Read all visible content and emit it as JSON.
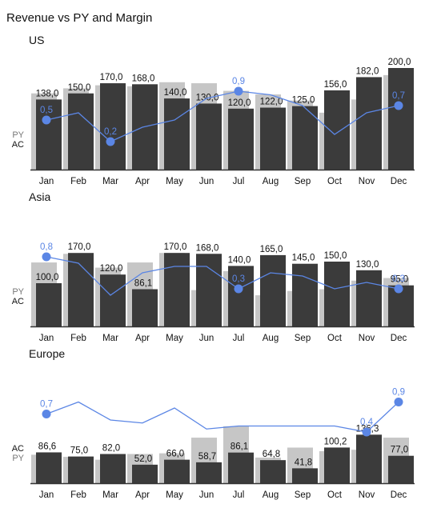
{
  "title": "Revenue vs PY and Margin",
  "colors": {
    "ac": "#3b3b3b",
    "py": "#c6c6c6",
    "margin": "#5b86e5",
    "axis": "#333333"
  },
  "chart_data": [
    {
      "type": "bar",
      "title": "US",
      "categories": [
        "Jan",
        "Feb",
        "Mar",
        "Apr",
        "May",
        "Jun",
        "Jul",
        "Aug",
        "Sep",
        "Oct",
        "Nov",
        "Dec"
      ],
      "side_labels": [
        "PY",
        "AC"
      ],
      "series": [
        {
          "name": "AC",
          "values": [
            138,
            150,
            170,
            168,
            140,
            130,
            120,
            122,
            125,
            156,
            182,
            200
          ]
        },
        {
          "name": "PY",
          "values": [
            150,
            160,
            166,
            164,
            172,
            170,
            155,
            148,
            136,
            112,
            138,
            186
          ]
        },
        {
          "name": "",
          "values": [
            0.5,
            0.6,
            0.2,
            0.4,
            0.5,
            0.8,
            0.9,
            0.85,
            0.7,
            0.3,
            0.6,
            0.7
          ]
        }
      ],
      "value_labels": [
        "138,0",
        "150,0",
        "170,0",
        "168,0",
        "140,0",
        "130,0",
        "120,0",
        "122,0",
        "125,0",
        "156,0",
        "182,0",
        "200,0"
      ],
      "margin_labels": [
        {
          "index": 0,
          "text": "0,5"
        },
        {
          "index": 2,
          "text": "0,2"
        },
        {
          "index": 6,
          "text": "0,9"
        },
        {
          "index": 11,
          "text": "0,7"
        }
      ]
    },
    {
      "type": "bar",
      "title": "Asia",
      "categories": [
        "Jan",
        "Feb",
        "Mar",
        "Apr",
        "May",
        "Jun",
        "Jul",
        "Aug",
        "Sep",
        "Oct",
        "Nov",
        "Dec"
      ],
      "side_labels": [
        "PY",
        "AC"
      ],
      "series": [
        {
          "name": "AC",
          "values": [
            100,
            170,
            120,
            86.1,
            170,
            168,
            140,
            165,
            145,
            150,
            130,
            95
          ]
        },
        {
          "name": "PY",
          "values": [
            148,
            168,
            136,
            148,
            170,
            84,
            128,
            72,
            82,
            86,
            106,
            112
          ]
        },
        {
          "name": "",
          "values": [
            0.8,
            0.7,
            0.2,
            0.55,
            0.65,
            0.65,
            0.3,
            0.55,
            0.5,
            0.3,
            0.4,
            0.3
          ]
        }
      ],
      "value_labels": [
        "100,0",
        "170,0",
        "120,0",
        "86,1",
        "170,0",
        "168,0",
        "140,0",
        "165,0",
        "145,0",
        "150,0",
        "130,0",
        "95,0"
      ],
      "margin_labels": [
        {
          "index": 0,
          "text": "0,8"
        },
        {
          "index": 6,
          "text": "0,3"
        },
        {
          "index": 11,
          "text": "0,3"
        }
      ]
    },
    {
      "type": "bar",
      "title": "Europe",
      "categories": [
        "Jan",
        "Feb",
        "Mar",
        "Apr",
        "May",
        "Jun",
        "Jul",
        "Aug",
        "Sep",
        "Oct",
        "Nov",
        "Dec"
      ],
      "side_labels": [
        "AC",
        "PY"
      ],
      "series": [
        {
          "name": "AC",
          "values": [
            86.6,
            75,
            82,
            52,
            66,
            58.7,
            86.1,
            64.8,
            41.8,
            100.2,
            136.3,
            77
          ]
        },
        {
          "name": "PY",
          "values": [
            80,
            74,
            66,
            82,
            84,
            128,
            160,
            72,
            100,
            90,
            94,
            128
          ]
        },
        {
          "name": "",
          "values": [
            0.7,
            0.9,
            0.6,
            0.55,
            0.8,
            0.45,
            0.5,
            0.5,
            0.5,
            0.5,
            0.4,
            0.9
          ]
        }
      ],
      "value_labels": [
        "86,6",
        "75,0",
        "82,0",
        "52,0",
        "66,0",
        "58,7",
        "86,1",
        "64,8",
        "41,8",
        "100,2",
        "136,3",
        "77,0"
      ],
      "margin_labels": [
        {
          "index": 0,
          "text": "0,7"
        },
        {
          "index": 10,
          "text": "0,4"
        },
        {
          "index": 11,
          "text": "0,9"
        }
      ]
    }
  ]
}
